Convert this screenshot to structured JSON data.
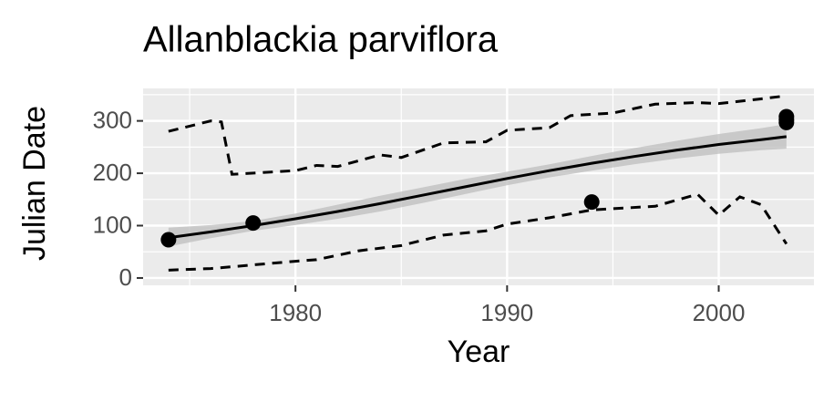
{
  "chart_data": {
    "type": "line",
    "title": "Allanblackia parviflora",
    "x_label": "Year",
    "y_label": "Julian Date",
    "xlim": [
      1972.8,
      2004.5
    ],
    "ylim": [
      -14,
      362
    ],
    "xticks": [
      1980,
      1990,
      2000
    ],
    "yticks": [
      0,
      100,
      200,
      300
    ],
    "xminor": [
      1975,
      1985,
      1995
    ],
    "yminor": [
      50,
      150,
      250,
      350
    ],
    "grid": true,
    "panel_color": "#ebebeb",
    "grid_color": "#ffffff",
    "points": {
      "color": "#000000",
      "x": [
        1974,
        1978,
        1994,
        2003.2,
        2003.2,
        2003.2
      ],
      "values": [
        73,
        105,
        145,
        297,
        302,
        308
      ]
    },
    "smooth": {
      "color": "#000000",
      "band_color": "#bdbdbd",
      "x": [
        1974,
        1976,
        1978,
        1980,
        1982,
        1984,
        1986,
        1988,
        1990,
        1992,
        1994,
        1996,
        1998,
        2000,
        2002,
        2003.2
      ],
      "values": [
        77,
        88,
        100,
        113,
        127,
        142,
        158,
        174,
        190,
        205,
        219,
        232,
        244,
        255,
        264,
        270
      ],
      "lower": [
        60,
        76,
        90,
        101,
        113,
        127,
        143,
        160,
        177,
        192,
        205,
        217,
        228,
        237,
        244,
        247
      ],
      "upper": [
        96,
        101,
        109,
        123,
        140,
        157,
        173,
        189,
        203,
        217,
        233,
        248,
        262,
        275,
        286,
        294
      ]
    },
    "bounds": [
      {
        "color": "#000000",
        "x": [
          1974,
          1976,
          1976.5,
          1977,
          1980,
          1981,
          1982,
          1984,
          1985,
          1987,
          1989,
          1990,
          1992,
          1993,
          1995,
          1997,
          1999,
          2000,
          2002,
          2003.2
        ],
        "values": [
          280,
          300,
          298,
          198,
          205,
          215,
          213,
          235,
          230,
          258,
          260,
          282,
          287,
          310,
          315,
          332,
          335,
          333,
          342,
          348
        ]
      },
      {
        "color": "#000000",
        "x": [
          1974,
          1976,
          1978,
          1980,
          1981,
          1983,
          1985,
          1987,
          1989,
          1990,
          1992,
          1994,
          1997,
          1999,
          2000,
          2001,
          2002,
          2003.2
        ],
        "values": [
          15,
          18,
          25,
          32,
          35,
          52,
          62,
          82,
          90,
          103,
          115,
          130,
          137,
          160,
          120,
          155,
          140,
          65
        ]
      }
    ]
  }
}
